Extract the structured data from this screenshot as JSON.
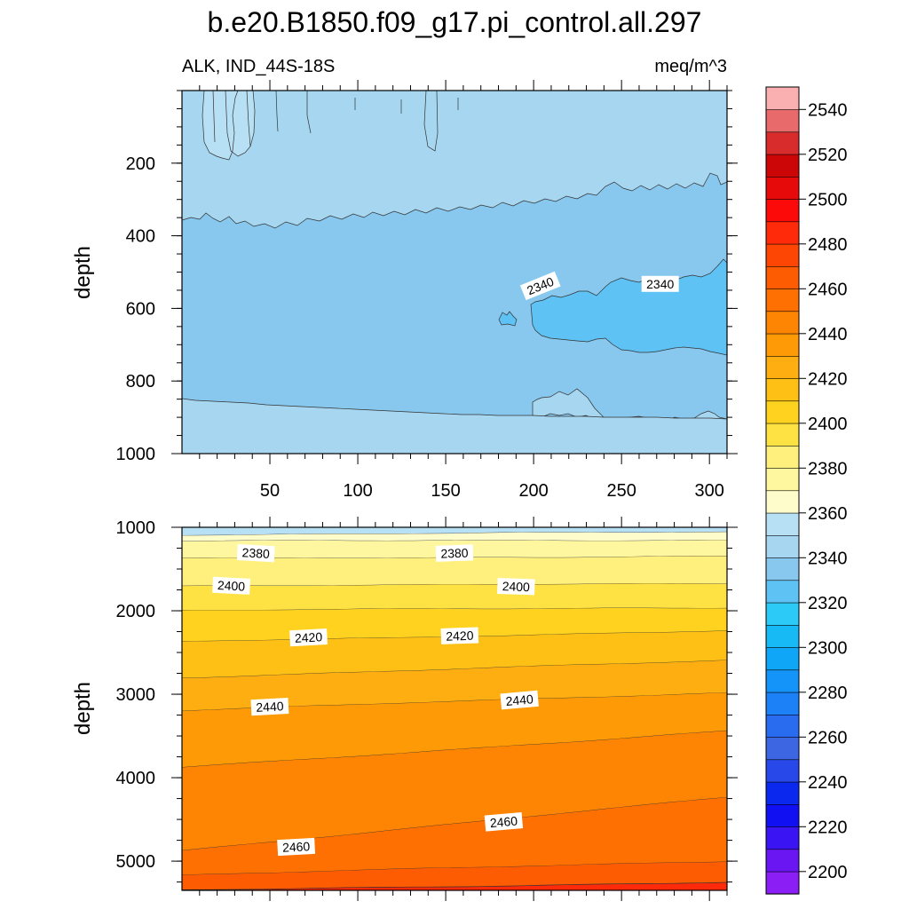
{
  "chart_data": {
    "type": "contour",
    "title": "b.e20.B1850.f09_g17.pi_control.all.297",
    "variable_label": "ALK, IND_44S-18S",
    "units_label": "meq/m^3",
    "colorbar": {
      "levels": [
        2200,
        2210,
        2220,
        2230,
        2240,
        2250,
        2260,
        2270,
        2280,
        2290,
        2300,
        2310,
        2320,
        2330,
        2340,
        2350,
        2360,
        2370,
        2380,
        2390,
        2400,
        2410,
        2420,
        2430,
        2440,
        2450,
        2460,
        2470,
        2480,
        2490,
        2500,
        2510,
        2520,
        2530,
        2540,
        2550
      ],
      "colors": [
        "#8a1ef5",
        "#6a16f2",
        "#3a14f2",
        "#1010f2",
        "#0a28ee",
        "#2848ea",
        "#3c66e2",
        "#2a6cf0",
        "#1c80f6",
        "#1494f8",
        "#10a6f8",
        "#18baf6",
        "#2ccaf6",
        "#5ec2f4",
        "#88c8ee",
        "#a6d6f0",
        "#b8e0f4",
        "#fffccc",
        "#fff6a0",
        "#fff07e",
        "#fee244",
        "#fed21e",
        "#fec014",
        "#feae10",
        "#fe9a06",
        "#fe8404",
        "#fe7002",
        "#fe5c02",
        "#fe4604",
        "#fe2a0a",
        "#fc0a0a",
        "#e60a0a",
        "#cc0606",
        "#d82c2c",
        "#e86a6a",
        "#fab0b0"
      ],
      "tick_labels": [
        "2200",
        "2220",
        "2240",
        "2260",
        "2280",
        "2300",
        "2320",
        "2340",
        "2360",
        "2380",
        "2400",
        "2420",
        "2440",
        "2460",
        "2480",
        "2500",
        "2520",
        "2540"
      ]
    },
    "panels": [
      {
        "name": "upper",
        "ylabel": "depth",
        "xlim": [
          0,
          310
        ],
        "ylim": [
          1000,
          0
        ],
        "x_ticks": [
          50,
          100,
          150,
          200,
          250,
          300
        ],
        "x_tick_labels": [
          "50",
          "100",
          "150",
          "200",
          "250",
          "300"
        ],
        "y_ticks": [
          200,
          400,
          600,
          800,
          1000
        ],
        "y_tick_labels": [
          "200",
          "400",
          "600",
          "800",
          "1000"
        ],
        "contour_labels": [
          {
            "text": "2340",
            "x": 204,
            "y": 540,
            "angle": -22
          },
          {
            "text": "2340",
            "x": 272,
            "y": 535,
            "angle": 0
          }
        ]
      },
      {
        "name": "lower",
        "ylabel": "depth",
        "xlim": [
          0,
          310
        ],
        "ylim": [
          5350,
          1000
        ],
        "y_ticks": [
          1000,
          2000,
          3000,
          4000,
          5000
        ],
        "y_tick_labels": [
          "1000",
          "2000",
          "3000",
          "4000",
          "5000"
        ],
        "contour_labels": [
          {
            "text": "2380",
            "x": 42,
            "y": 1320,
            "angle": 3
          },
          {
            "text": "2380",
            "x": 155,
            "y": 1320,
            "angle": -2
          },
          {
            "text": "2400",
            "x": 28,
            "y": 1710,
            "angle": 3
          },
          {
            "text": "2400",
            "x": 190,
            "y": 1720,
            "angle": 2
          },
          {
            "text": "2420",
            "x": 72,
            "y": 2330,
            "angle": -3
          },
          {
            "text": "2420",
            "x": 158,
            "y": 2310,
            "angle": -2
          },
          {
            "text": "2440",
            "x": 50,
            "y": 3160,
            "angle": -3
          },
          {
            "text": "2440",
            "x": 192,
            "y": 3080,
            "angle": -5
          },
          {
            "text": "2460",
            "x": 65,
            "y": 4840,
            "angle": -3
          },
          {
            "text": "2460",
            "x": 183,
            "y": 4540,
            "angle": -5
          }
        ]
      }
    ]
  }
}
